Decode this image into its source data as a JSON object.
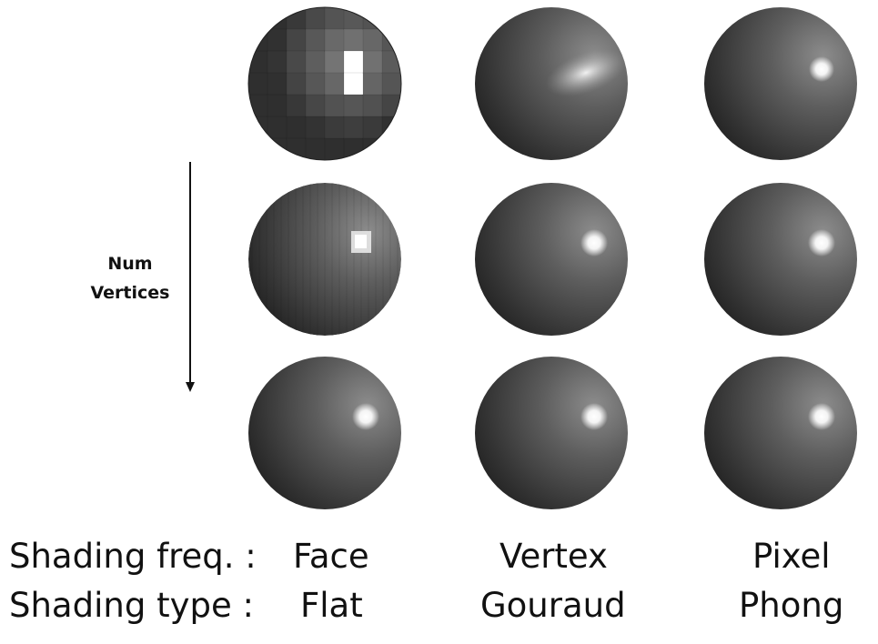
{
  "axis": {
    "line1": "Num",
    "line2": "Vertices"
  },
  "rows": {
    "freq_label": "Shading freq. :",
    "type_label": "Shading type :"
  },
  "columns": [
    {
      "freq": "Face",
      "type": "Flat"
    },
    {
      "freq": "Vertex",
      "type": "Gouraud"
    },
    {
      "freq": "Pixel",
      "type": "Phong"
    }
  ],
  "colors": {
    "background": "#ffffff",
    "text": "#111111",
    "sphere_dark": "#1c1c1c",
    "sphere_mid": "#4a4a4a",
    "sphere_light": "#8a8a8a",
    "highlight": "#ffffff"
  }
}
